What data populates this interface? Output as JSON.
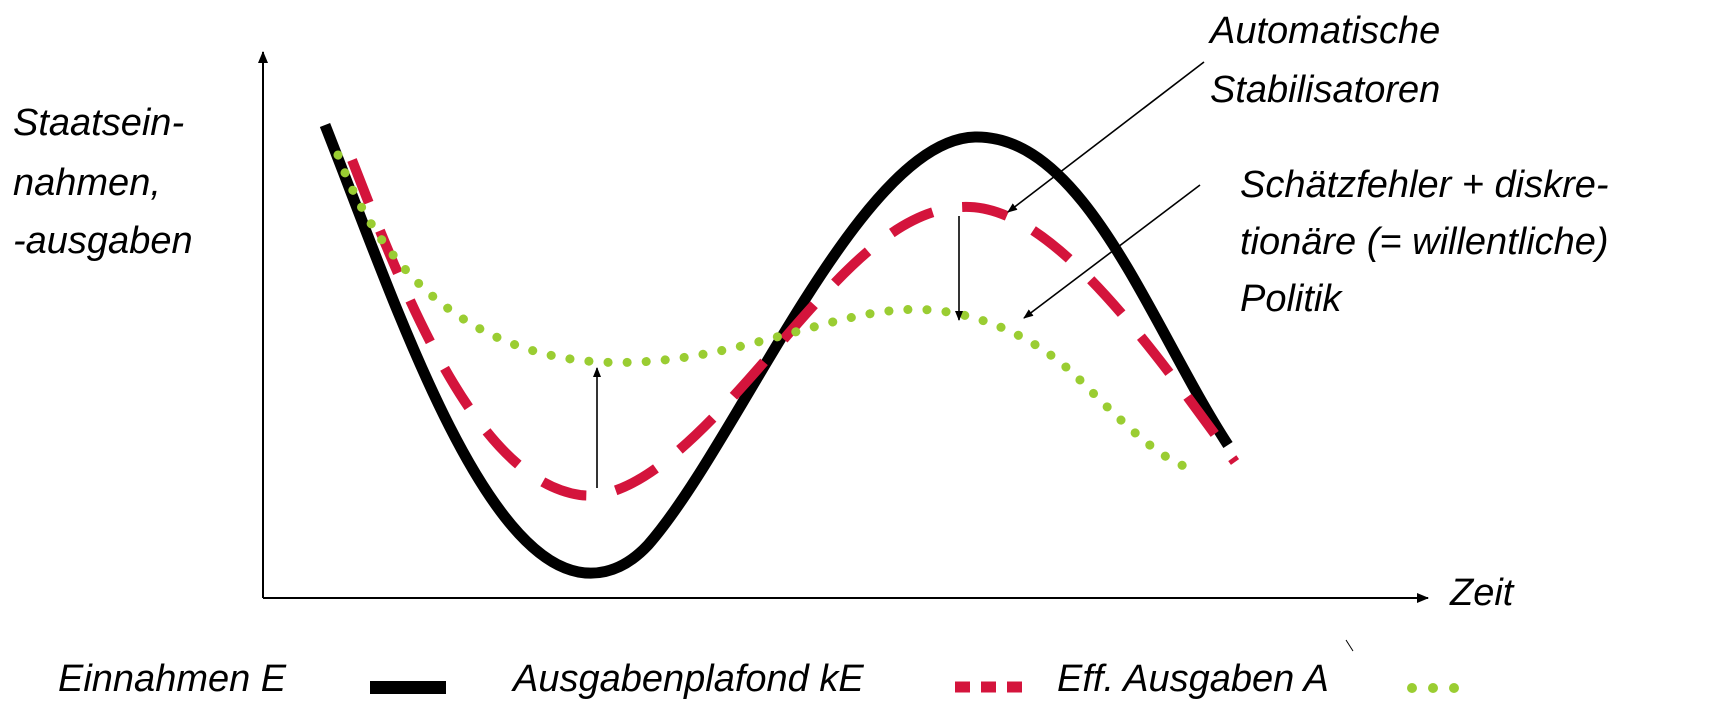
{
  "y_axis_label": [
    "Staatsein-",
    "nahmen,",
    "-ausgaben"
  ],
  "x_axis_label": "Zeit",
  "annotations": {
    "automatic_stabilizers": [
      "Automatische",
      "Stabilisatoren"
    ],
    "estimation_errors": [
      "Schätzfehler + diskre-",
      "tionäre (= willentliche)",
      "Politik"
    ]
  },
  "legend": {
    "revenue": "Einnahmen E",
    "ceiling": "Ausgabenplafond kE",
    "actual": "Eff. Ausgaben A"
  },
  "colors": {
    "revenue": "#000000",
    "ceiling": "#d4143c",
    "actual": "#9acd32"
  }
}
